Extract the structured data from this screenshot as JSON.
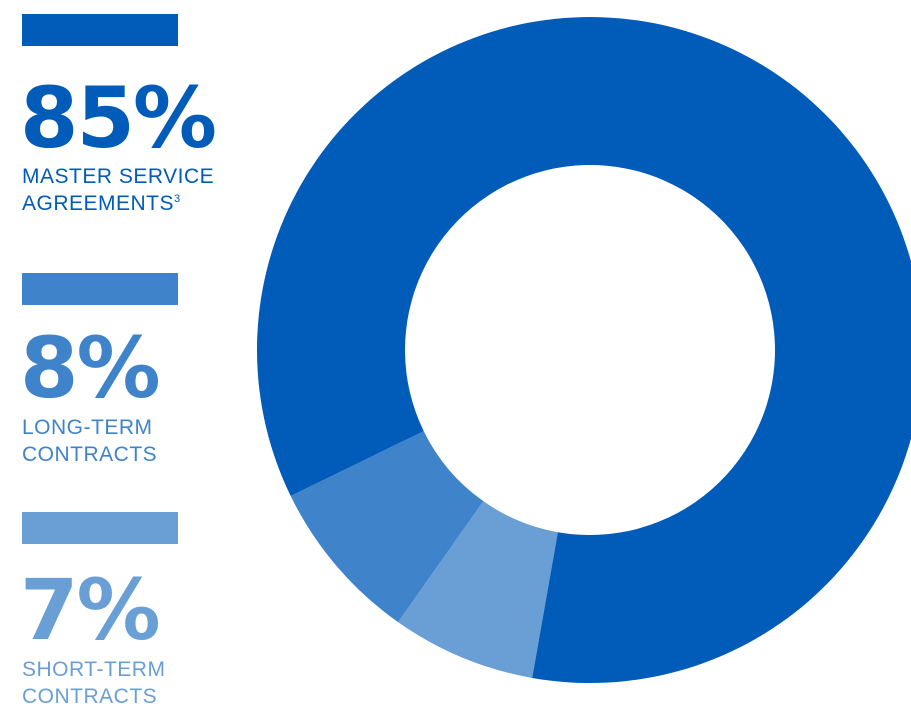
{
  "chart_data": {
    "type": "pie",
    "style": "donut",
    "series": [
      {
        "value_label": "85%",
        "label_line1": "MASTER SERVICE",
        "label_line2": "AGREEMENTS",
        "footnote": "3",
        "value": 85,
        "color": "#005cb8"
      },
      {
        "value_label": "8%",
        "label_line1": "LONG-TERM",
        "label_line2": "CONTRACTS",
        "footnote": "",
        "value": 8,
        "color": "#3f83ca"
      },
      {
        "value_label": "7%",
        "label_line1": "SHORT-TERM",
        "label_line2": "CONTRACTS",
        "footnote": "",
        "value": 7,
        "color": "#6a9fd6"
      }
    ]
  }
}
